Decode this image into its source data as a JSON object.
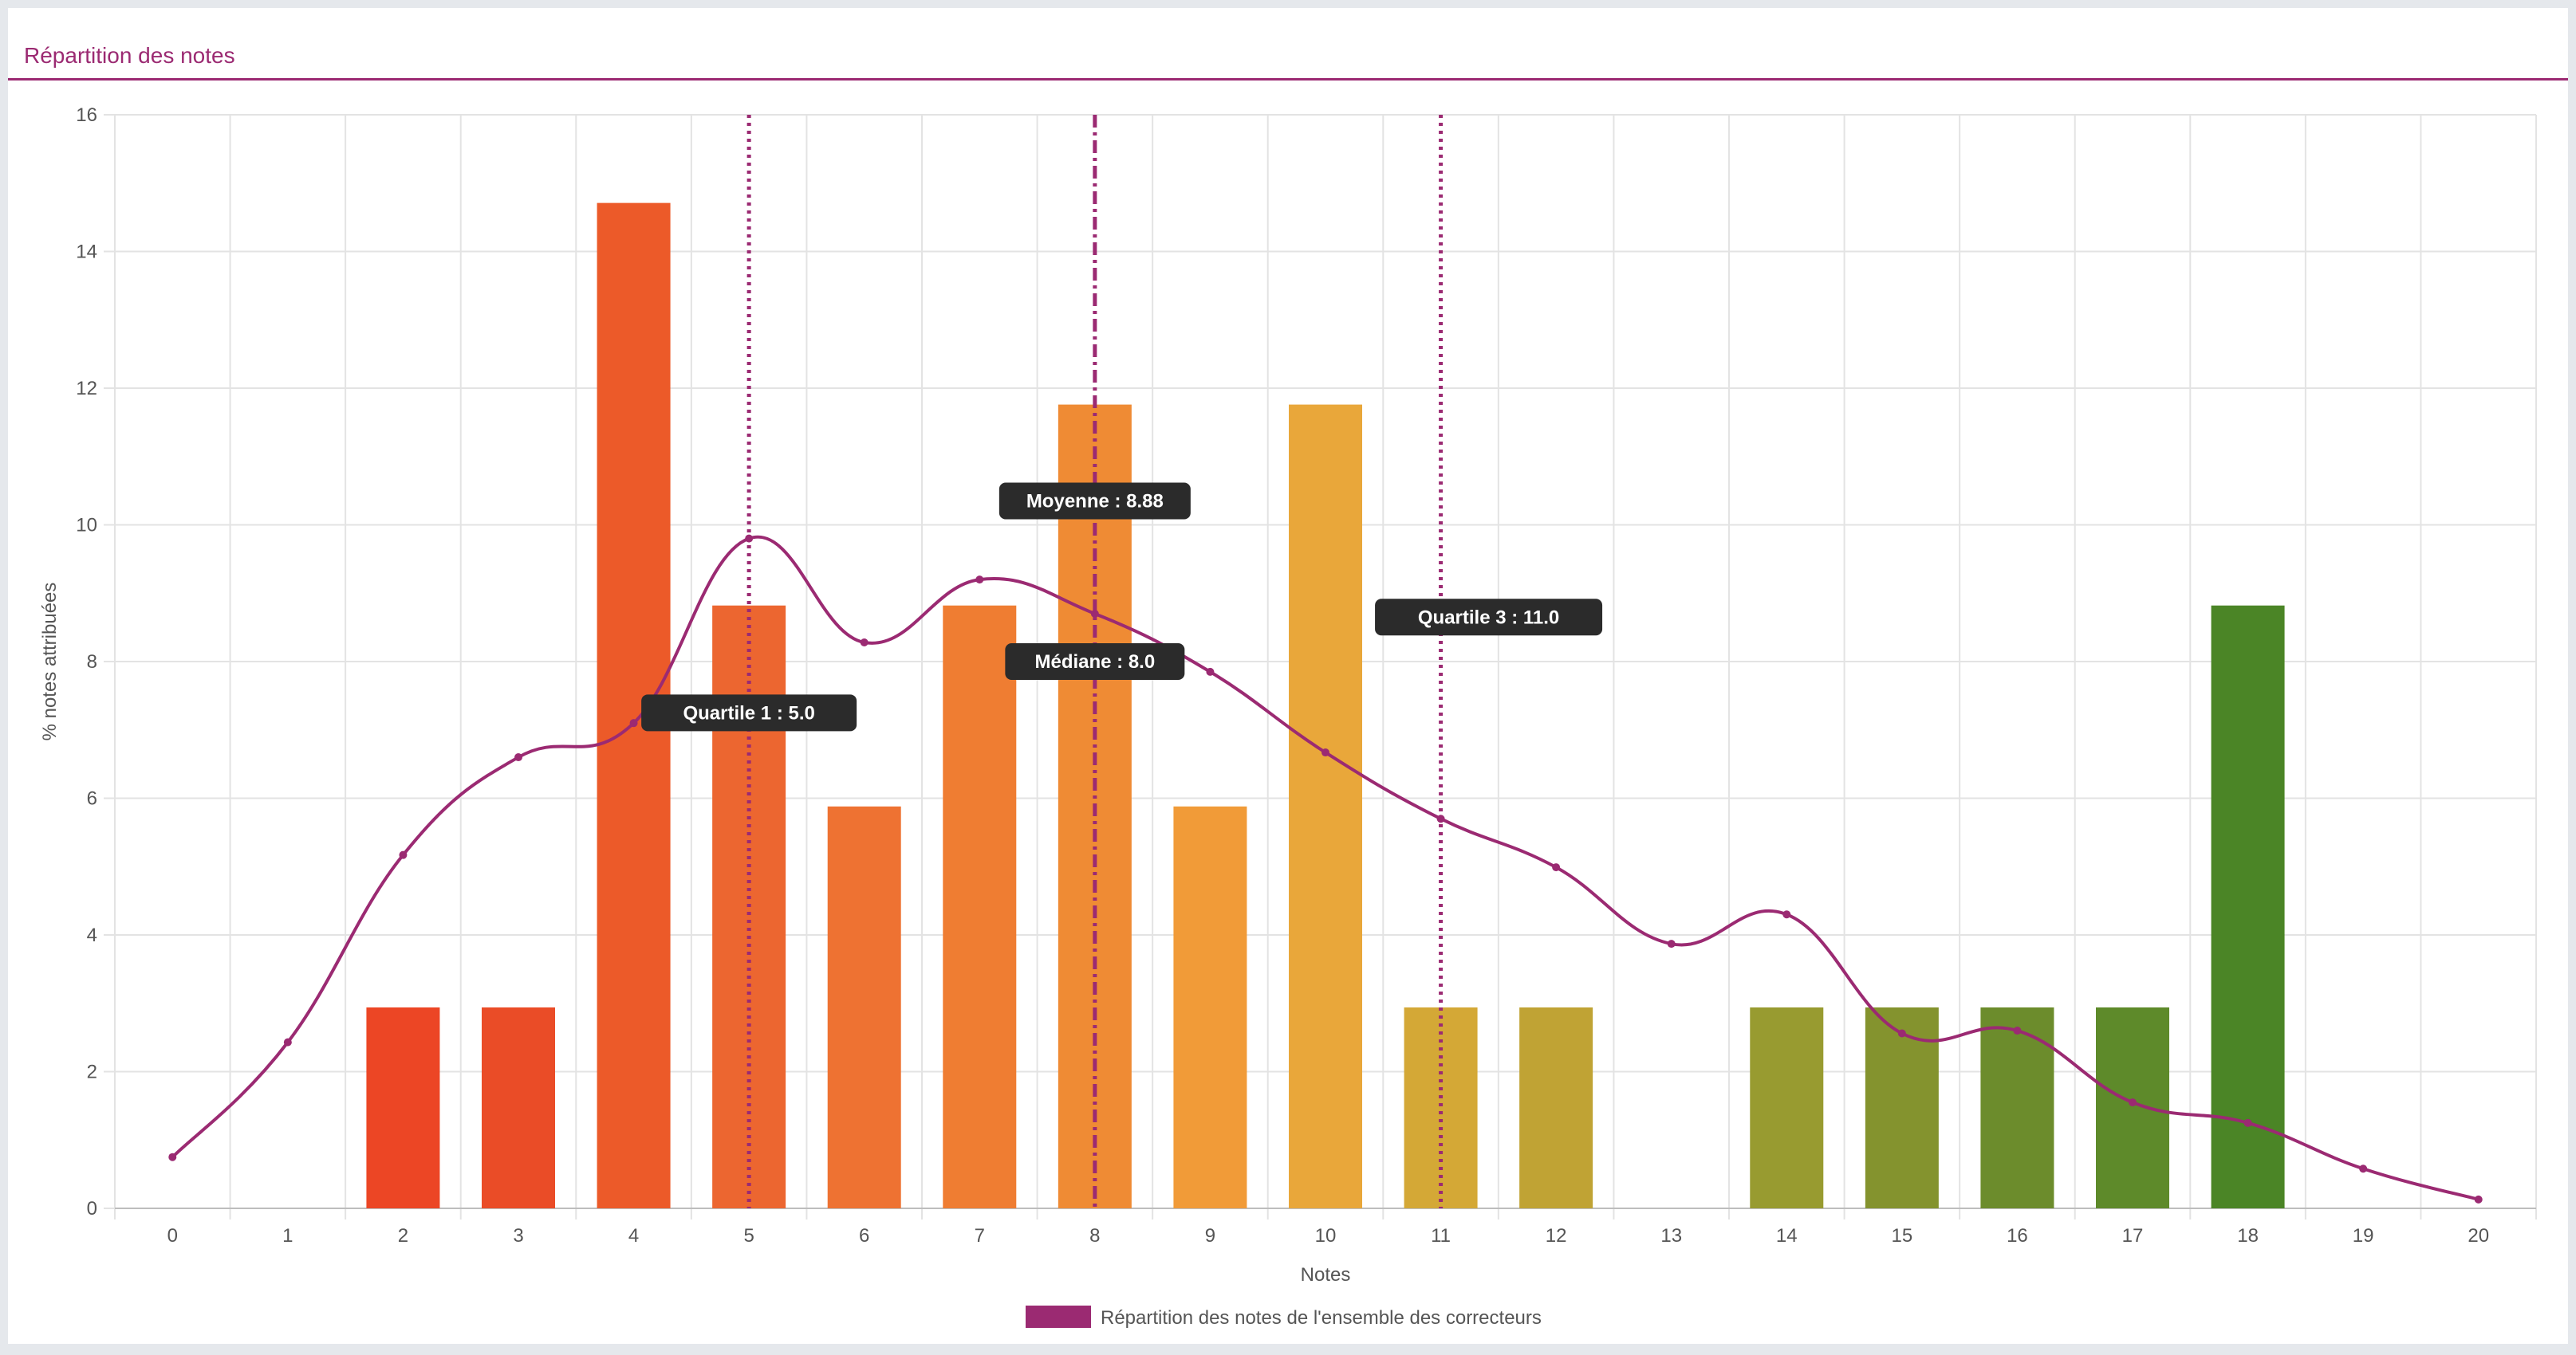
{
  "panel": {
    "title": "Répartition des notes"
  },
  "chart_data": {
    "type": "bar",
    "categories": [
      "0",
      "1",
      "2",
      "3",
      "4",
      "5",
      "6",
      "7",
      "8",
      "9",
      "10",
      "11",
      "12",
      "13",
      "14",
      "15",
      "16",
      "17",
      "18",
      "19",
      "20"
    ],
    "values": [
      0,
      0,
      2.94,
      2.94,
      14.71,
      8.82,
      5.88,
      8.82,
      11.76,
      5.88,
      11.76,
      2.94,
      2.94,
      0,
      2.94,
      2.94,
      2.94,
      2.94,
      8.82,
      0,
      0
    ],
    "bar_colors": [
      "#ec3e24",
      "#ec4224",
      "#ec4625",
      "#ea4c27",
      "#ec5a29",
      "#ec6630",
      "#ee7232",
      "#ef7d32",
      "#ef8b34",
      "#f19b38",
      "#e9a73a",
      "#d4a836",
      "#c0a334",
      "#b09d32",
      "#989b30",
      "#84932e",
      "#6c8c2c",
      "#5e8a2a",
      "#4b8526",
      "#3f7f24",
      "#367a22"
    ],
    "line_series": {
      "values": [
        0.75,
        2.43,
        5.17,
        6.6,
        7.1,
        9.8,
        8.28,
        9.2,
        8.7,
        7.85,
        6.67,
        5.7,
        4.99,
        3.87,
        4.3,
        2.56,
        2.6,
        1.55,
        1.25,
        0.58,
        0.13
      ],
      "color": "#9b2a72"
    },
    "reference_lines": [
      {
        "x": 5,
        "label": "Quartile 1 : 5.0",
        "style": "dotted"
      },
      {
        "x": 8,
        "label": "Médiane : 8.0",
        "style": "dashdot"
      },
      {
        "x": 8,
        "label": "Moyenne : 8.88",
        "style": "dashdot"
      },
      {
        "x": 11,
        "label": "Quartile 3 : 11.0",
        "style": "dotted"
      }
    ],
    "reference_color": "#9b2a72",
    "title": "",
    "xlabel": "Notes",
    "ylabel": "% notes attribuées",
    "ylim": [
      0,
      16
    ],
    "yticks": [
      "0",
      "2",
      "4",
      "6",
      "8",
      "10",
      "12",
      "14",
      "16"
    ],
    "grid": true,
    "legend": {
      "position": "bottom",
      "label": "Répartition des notes de l'ensemble des correcteurs",
      "color": "#9b2a72"
    }
  }
}
